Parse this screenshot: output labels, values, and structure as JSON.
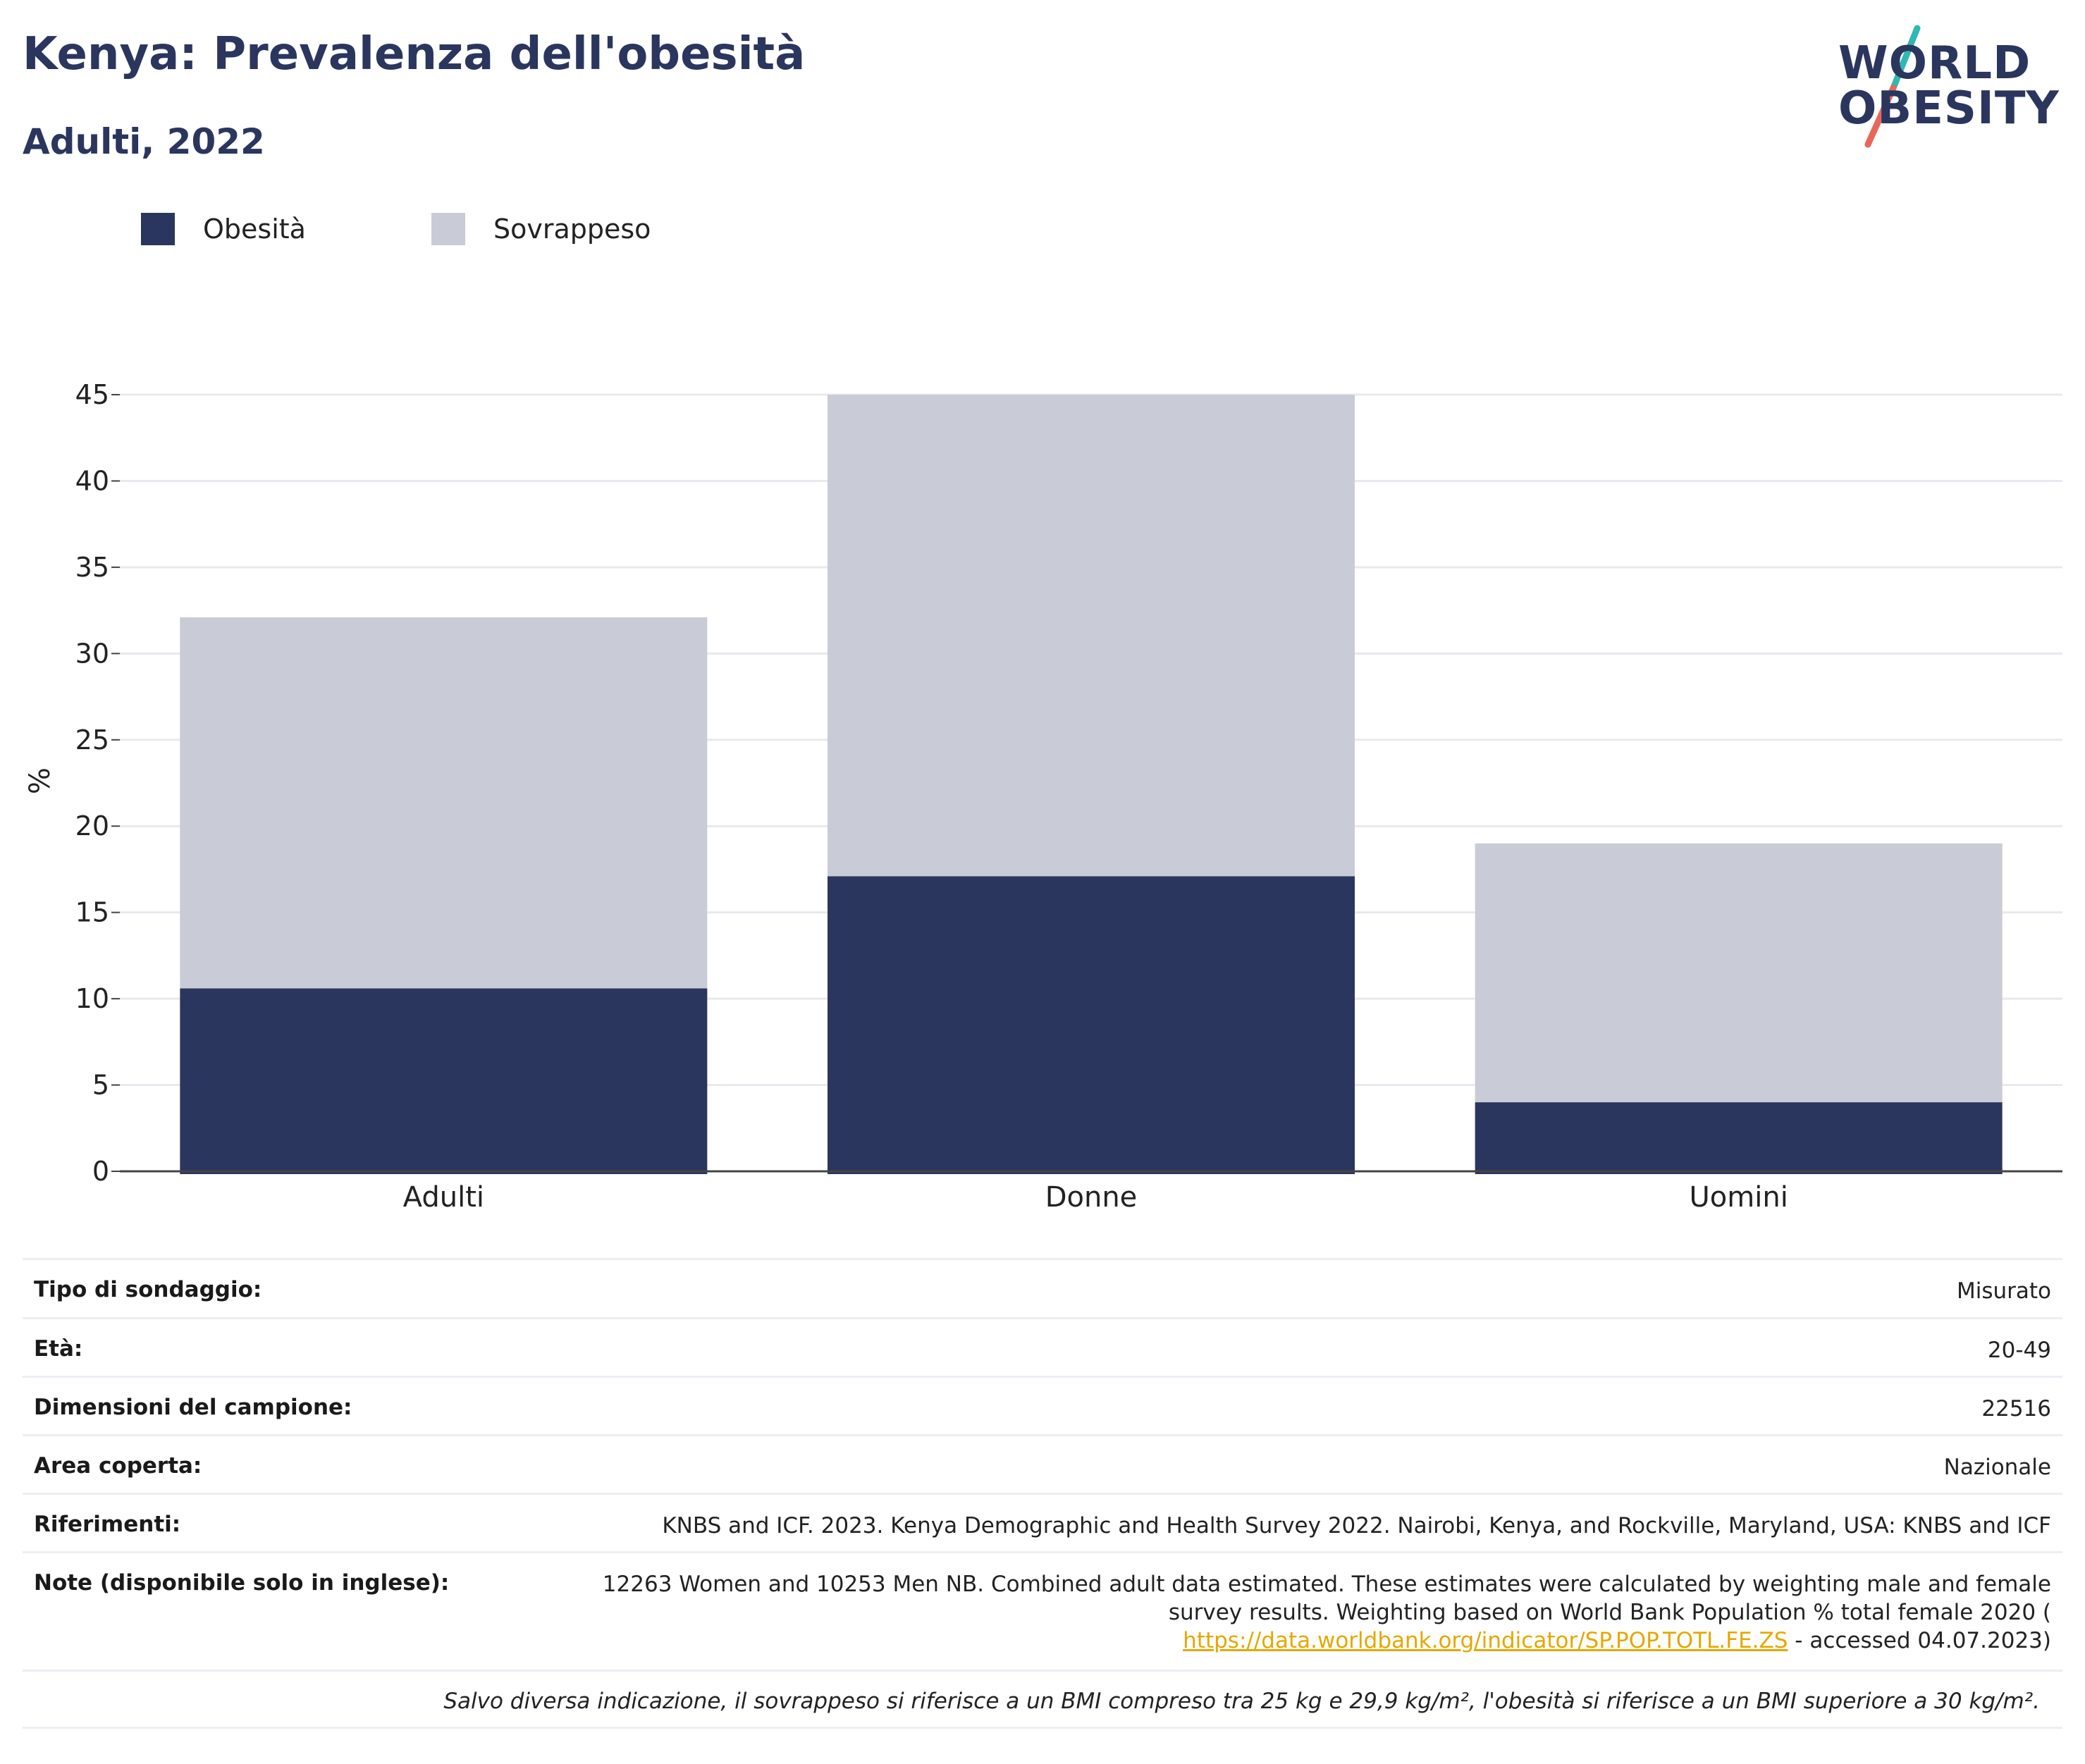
{
  "header": {
    "title": "Kenya: Prevalenza dell'obesità",
    "subtitle": "Adulti, 2022"
  },
  "logo": {
    "line1": "WORLD",
    "line2": "OBESITY",
    "slash_colors": [
      "#2fb8b4",
      "#e8665a"
    ]
  },
  "legend": [
    {
      "label": "Obesità",
      "color": "#2b365f"
    },
    {
      "label": "Sovrappeso",
      "color": "#c9cbd6"
    }
  ],
  "chart_data": {
    "type": "bar",
    "stacked": true,
    "categories": [
      "Adulti",
      "Donne",
      "Uomini"
    ],
    "series": [
      {
        "name": "Obesità",
        "color": "#2b365f",
        "values": [
          10.6,
          17.1,
          4.0
        ]
      },
      {
        "name": "Sovrappeso",
        "color": "#c9cbd6",
        "values": [
          21.5,
          27.9,
          15.0
        ]
      }
    ],
    "ylabel": "%",
    "ylim": [
      0,
      45
    ],
    "yticks": [
      0,
      5,
      10,
      15,
      20,
      25,
      30,
      35,
      40,
      45
    ],
    "grid": true,
    "legend_position": "top-left"
  },
  "info": {
    "rows": [
      {
        "key": "Tipo di sondaggio:",
        "value": "Misurato"
      },
      {
        "key": "Età:",
        "value": "20-49"
      },
      {
        "key": "Dimensioni del campione:",
        "value": "22516"
      },
      {
        "key": "Area coperta:",
        "value": "Nazionale"
      },
      {
        "key": "Riferimenti:",
        "value": "KNBS and ICF. 2023. Kenya Demographic and Health Survey 2022. Nairobi, Kenya, and Rockville, Maryland, USA: KNBS and ICF"
      }
    ],
    "notes": {
      "key": "Note (disponibile solo in inglese):",
      "line1": "12263 Women and 10253 Men NB. Combined adult data estimated. These estimates were calculated by weighting male and female",
      "line2": "survey results. Weighting based on World Bank Population % total female 2020 (",
      "link": "https://data.worldbank.org/indicator/SP.POP.TOTL.FE.ZS",
      "line3_suffix": " - accessed 04.07.2023)"
    },
    "footnote": "Salvo diversa indicazione, il sovrappeso si riferisce a un BMI compreso tra 25 kg e 29,9 kg/m², l'obesità si riferisce a un BMI superiore a 30 kg/m²."
  }
}
